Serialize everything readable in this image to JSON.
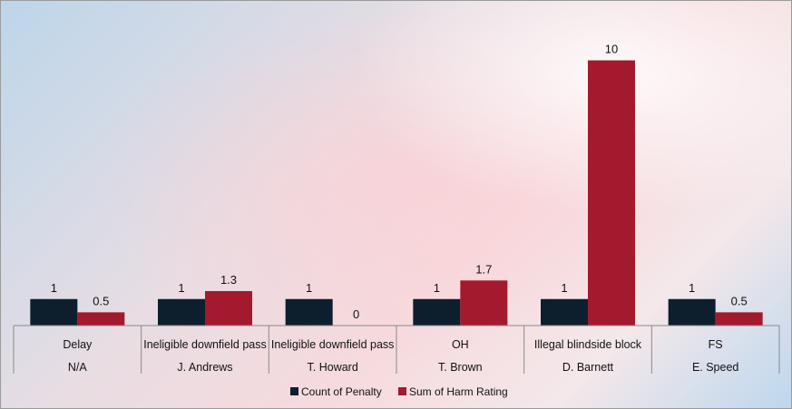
{
  "chart_data": {
    "type": "bar",
    "categories": [
      {
        "label": "Delay",
        "sublabel": "N/A"
      },
      {
        "label": "Ineligible downfield pass",
        "sublabel": "J. Andrews"
      },
      {
        "label": "Ineligible downfield pass",
        "sublabel": "T. Howard"
      },
      {
        "label": "OH",
        "sublabel": "T. Brown"
      },
      {
        "label": "Illegal blindside block",
        "sublabel": "D. Barnett"
      },
      {
        "label": "FS",
        "sublabel": "E. Speed"
      }
    ],
    "series": [
      {
        "name": "Count of Penalty",
        "values": [
          1,
          1,
          1,
          1,
          1,
          1
        ],
        "color": "#0d1f2d"
      },
      {
        "name": "Sum of Harm Rating",
        "values": [
          0.5,
          1.3,
          0,
          1.7,
          10,
          0.5
        ],
        "color": "#a31a2f"
      }
    ],
    "ylim": [
      0,
      10.6
    ],
    "grid": false,
    "legend": "bottom",
    "data_labels": true
  }
}
